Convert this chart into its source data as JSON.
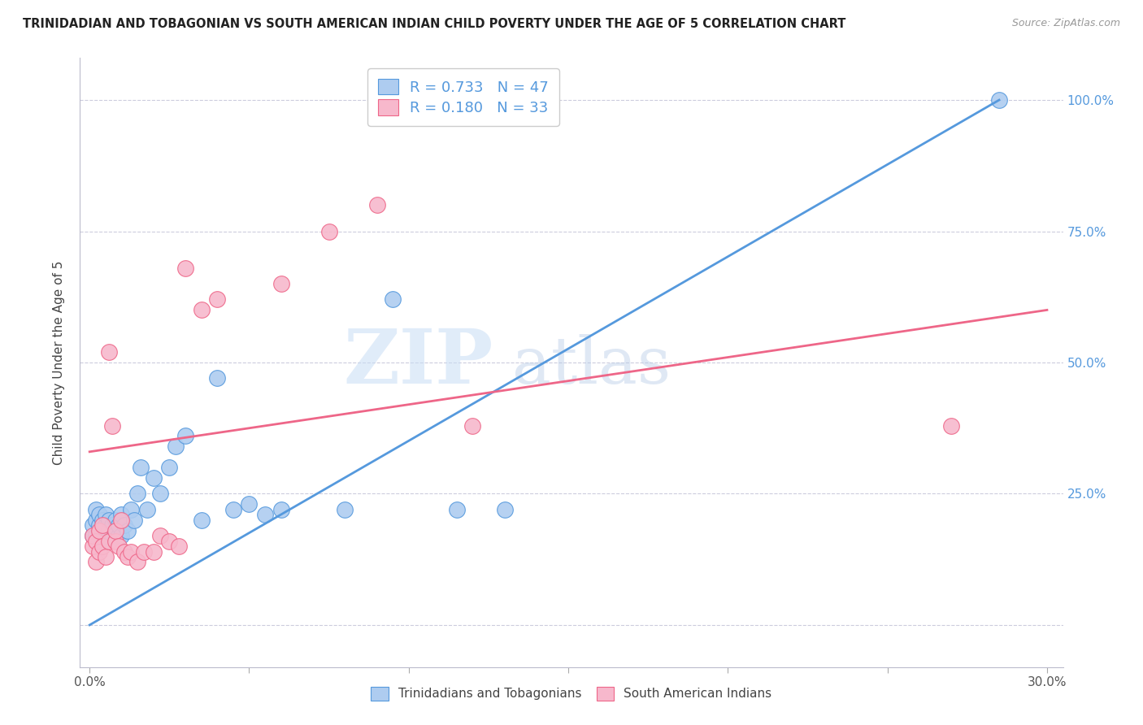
{
  "title": "TRINIDADIAN AND TOBAGONIAN VS SOUTH AMERICAN INDIAN CHILD POVERTY UNDER THE AGE OF 5 CORRELATION CHART",
  "source": "Source: ZipAtlas.com",
  "ylabel": "Child Poverty Under the Age of 5",
  "blue_R": "0.733",
  "blue_N": "47",
  "pink_R": "0.180",
  "pink_N": "33",
  "blue_color": "#aeccf0",
  "pink_color": "#f7b8cc",
  "blue_line_color": "#5599dd",
  "pink_line_color": "#ee6688",
  "watermark_zip": "ZIP",
  "watermark_atlas": "atlas",
  "legend_label_blue": "Trinidadians and Tobagonians",
  "legend_label_pink": "South American Indians",
  "blue_line_x0": 0.0,
  "blue_line_y0": 0.0,
  "blue_line_x1": 0.285,
  "blue_line_y1": 1.0,
  "pink_line_x0": 0.0,
  "pink_line_y0": 0.33,
  "pink_line_x1": 0.3,
  "pink_line_y1": 0.6,
  "blue_pts_x": [
    0.001,
    0.001,
    0.002,
    0.002,
    0.002,
    0.003,
    0.003,
    0.003,
    0.004,
    0.004,
    0.004,
    0.005,
    0.005,
    0.005,
    0.006,
    0.006,
    0.007,
    0.007,
    0.008,
    0.008,
    0.009,
    0.009,
    0.01,
    0.01,
    0.011,
    0.012,
    0.013,
    0.014,
    0.015,
    0.016,
    0.018,
    0.02,
    0.022,
    0.025,
    0.027,
    0.03,
    0.035,
    0.04,
    0.045,
    0.05,
    0.055,
    0.06,
    0.08,
    0.095,
    0.115,
    0.13,
    0.285
  ],
  "blue_pts_y": [
    0.17,
    0.19,
    0.17,
    0.2,
    0.22,
    0.18,
    0.19,
    0.21,
    0.16,
    0.18,
    0.2,
    0.17,
    0.19,
    0.21,
    0.18,
    0.2,
    0.17,
    0.19,
    0.18,
    0.2,
    0.17,
    0.19,
    0.17,
    0.21,
    0.19,
    0.18,
    0.22,
    0.2,
    0.25,
    0.3,
    0.22,
    0.28,
    0.25,
    0.3,
    0.34,
    0.36,
    0.2,
    0.47,
    0.22,
    0.23,
    0.21,
    0.22,
    0.22,
    0.62,
    0.22,
    0.22,
    1.0
  ],
  "pink_pts_x": [
    0.001,
    0.001,
    0.002,
    0.002,
    0.003,
    0.003,
    0.004,
    0.004,
    0.005,
    0.006,
    0.006,
    0.007,
    0.008,
    0.008,
    0.009,
    0.01,
    0.011,
    0.012,
    0.013,
    0.015,
    0.017,
    0.02,
    0.022,
    0.025,
    0.028,
    0.03,
    0.035,
    0.04,
    0.06,
    0.075,
    0.09,
    0.12,
    0.27
  ],
  "pink_pts_y": [
    0.15,
    0.17,
    0.12,
    0.16,
    0.14,
    0.18,
    0.15,
    0.19,
    0.13,
    0.16,
    0.52,
    0.38,
    0.16,
    0.18,
    0.15,
    0.2,
    0.14,
    0.13,
    0.14,
    0.12,
    0.14,
    0.14,
    0.17,
    0.16,
    0.15,
    0.68,
    0.6,
    0.62,
    0.65,
    0.75,
    0.8,
    0.38,
    0.38
  ],
  "xlim_min": -0.003,
  "xlim_max": 0.305,
  "ylim_min": -0.08,
  "ylim_max": 1.08,
  "xticks": [
    0.0,
    0.05,
    0.1,
    0.15,
    0.2,
    0.25,
    0.3
  ],
  "yticks": [
    0.0,
    0.25,
    0.5,
    0.75,
    1.0
  ]
}
